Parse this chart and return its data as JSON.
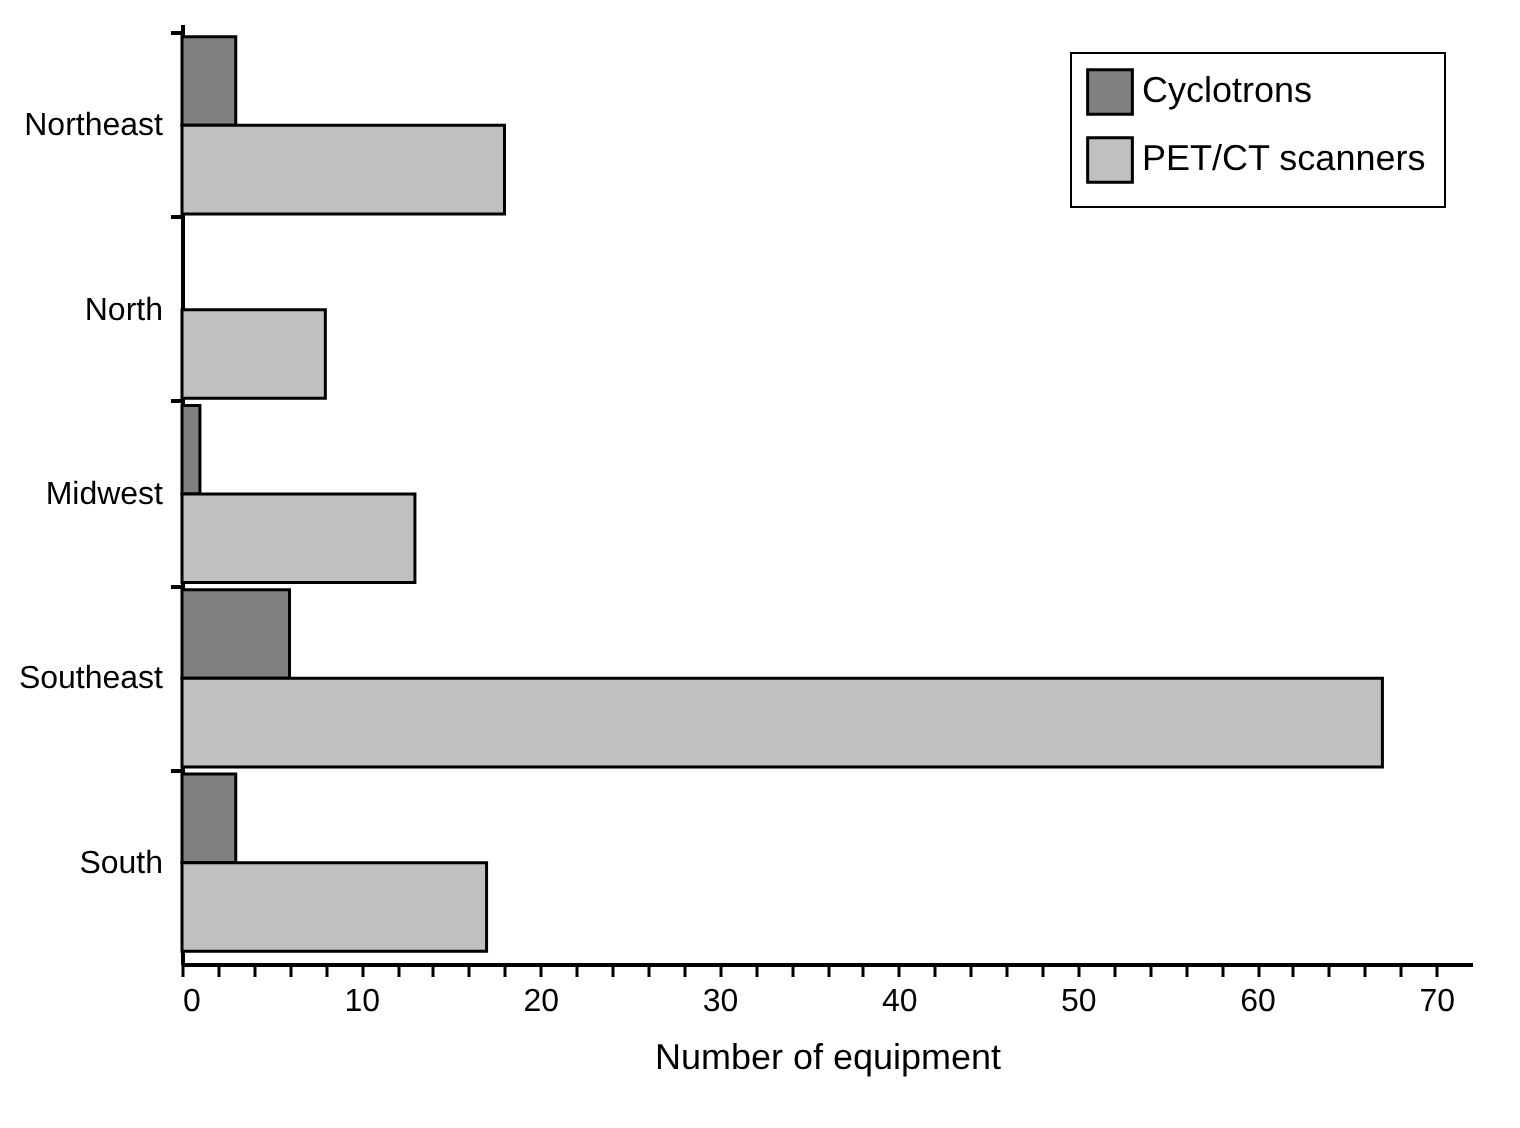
{
  "chart_data": {
    "type": "bar",
    "orientation": "horizontal",
    "xlabel": "Number of equipment",
    "categories": [
      "Northeast",
      "North",
      "Midwest",
      "Southeast",
      "South"
    ],
    "series": [
      {
        "name": "Cyclotrons",
        "color": "#808080",
        "values": [
          3,
          0,
          1,
          6,
          3
        ]
      },
      {
        "name": "PET/CT scanners",
        "color": "#c0c0c0",
        "values": [
          18,
          8,
          13,
          67,
          17
        ]
      }
    ],
    "xlim": [
      0,
      72
    ],
    "xticks": [
      0,
      {
        "value": 2,
        "label": null
      },
      {
        "value": 4,
        "label": null
      },
      {
        "value": 6,
        "label": null
      },
      {
        "value": 8,
        "label": null
      },
      10,
      {
        "value": 12,
        "label": null
      },
      {
        "value": 14,
        "label": null
      },
      {
        "value": 16,
        "label": null
      },
      {
        "value": 18,
        "label": null
      },
      20,
      {
        "value": 22,
        "label": null
      },
      {
        "value": 24,
        "label": null
      },
      {
        "value": 26,
        "label": null
      },
      {
        "value": 28,
        "label": null
      },
      30,
      {
        "value": 32,
        "label": null
      },
      {
        "value": 34,
        "label": null
      },
      {
        "value": 36,
        "label": null
      },
      {
        "value": 38,
        "label": null
      },
      40,
      {
        "value": 42,
        "label": null
      },
      {
        "value": 44,
        "label": null
      },
      {
        "value": 46,
        "label": null
      },
      {
        "value": 48,
        "label": null
      },
      50,
      {
        "value": 52,
        "label": null
      },
      {
        "value": 54,
        "label": null
      },
      {
        "value": 56,
        "label": null
      },
      {
        "value": 58,
        "label": null
      },
      60,
      {
        "value": 62,
        "label": null
      },
      {
        "value": 64,
        "label": null
      },
      {
        "value": 66,
        "label": null
      },
      {
        "value": 68,
        "label": null
      },
      70
    ],
    "grid": false,
    "legend": "top right"
  }
}
